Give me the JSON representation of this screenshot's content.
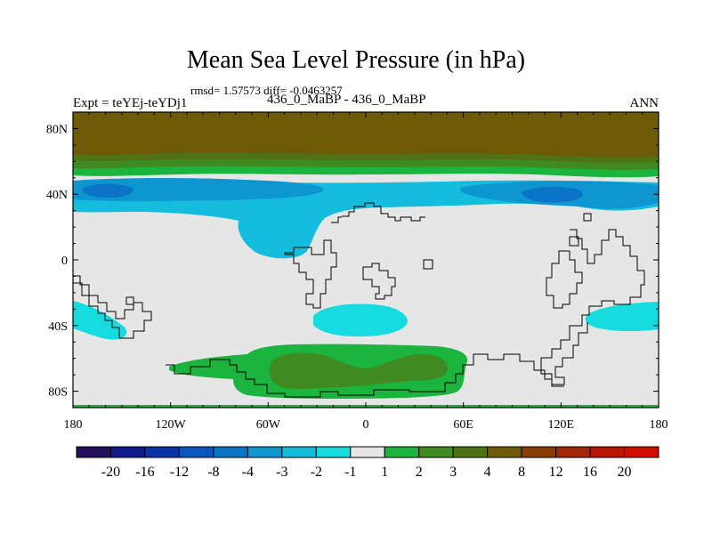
{
  "header": {
    "title": "Mean Sea Level Pressure (in hPa)",
    "stats": "rmsd= 1.57573 diff= -0.0463257",
    "left_label": "Expt = teYEj-teYDj1",
    "center_label": "436_0_MaBP - 436_0_MaBP",
    "right_label": "ANN"
  },
  "chart_data": {
    "type": "heatmap",
    "title": "Mean Sea Level Pressure (in hPa)",
    "subtitle": "436_0_MaBP - 436_0_MaBP",
    "projection": "cylindrical-equidistant",
    "x_range": [
      -180,
      180
    ],
    "y_range": [
      -90,
      90
    ],
    "x_ticks": [
      {
        "value": -180,
        "label": "180"
      },
      {
        "value": -120,
        "label": "120W"
      },
      {
        "value": -60,
        "label": "60W"
      },
      {
        "value": 0,
        "label": "0"
      },
      {
        "value": 60,
        "label": "60E"
      },
      {
        "value": 120,
        "label": "120E"
      },
      {
        "value": 180,
        "label": "180"
      }
    ],
    "y_ticks": [
      {
        "value": 80,
        "label": "80N"
      },
      {
        "value": 40,
        "label": "40N"
      },
      {
        "value": 0,
        "label": "0"
      },
      {
        "value": -40,
        "label": "40S"
      },
      {
        "value": -80,
        "label": "80S"
      }
    ],
    "colorbar": {
      "levels": [
        "-20",
        "-16",
        "-12",
        "-8",
        "-4",
        "-3",
        "-2",
        "-1",
        "1",
        "2",
        "3",
        "4",
        "8",
        "12",
        "16",
        "20"
      ],
      "colors": [
        "#22105a",
        "#101a8c",
        "#0a34a6",
        "#0a56bf",
        "#0b74c6",
        "#0e96d0",
        "#14bcdd",
        "#16dcdf",
        "#e6e6e6",
        "#1ab43e",
        "#3f8b22",
        "#4f7314",
        "#6e5a06",
        "#8a3e05",
        "#a02604",
        "#b81602",
        "#d20b00"
      ]
    },
    "fields": {
      "background": "#e6e6e6",
      "arctic_max": "#6e5a06",
      "arctic_4_8": "#4f7314",
      "arctic_3_4": "#3f8b22",
      "arctic_2_3": "#1ab43e",
      "midlat_n_min2": "#14bcdd",
      "midlat_n_min3": "#0e96d0",
      "midlat_n_min4": "#0b74c6",
      "south_neg": "#16dcdf",
      "antarctic_pos": "#1ab43e",
      "antarctic_core": "#3f8b22"
    }
  }
}
